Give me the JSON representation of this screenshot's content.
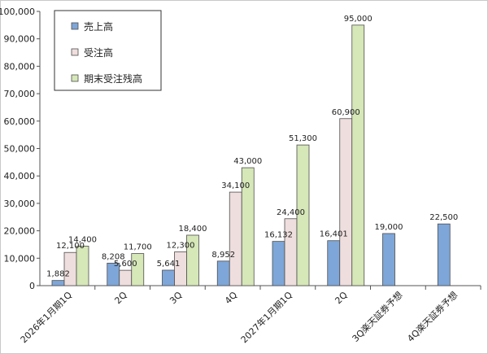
{
  "chart_data": {
    "type": "bar",
    "categories": [
      "2026年1月期1Q",
      "2Q",
      "3Q",
      "4Q",
      "2027年1月期1Q",
      "2Q",
      "3Q楽天証券予想",
      "4Q楽天証券予想"
    ],
    "series": [
      {
        "name": "売上高",
        "color": "#7ea6d8",
        "values": [
          1882,
          8208,
          5641,
          8952,
          16132,
          16401,
          19000,
          22500
        ],
        "labels": [
          "1,882",
          "8,208",
          "5,641",
          "8,952",
          "16,132",
          "16,401",
          "19,000",
          "22,500"
        ]
      },
      {
        "name": "受注高",
        "color": "#efdede",
        "values": [
          12100,
          5600,
          12300,
          34100,
          24400,
          60900,
          null,
          null
        ],
        "labels": [
          "12,100",
          "5,600",
          "12,300",
          "34,100",
          "24,400",
          "60,900",
          "",
          ""
        ]
      },
      {
        "name": "期末受注残高",
        "color": "#d6e7b8",
        "values": [
          14400,
          11700,
          18400,
          43000,
          51300,
          95000,
          null,
          null
        ],
        "labels": [
          "14,400",
          "11,700",
          "18,400",
          "43,000",
          "51,300",
          "95,000",
          "",
          ""
        ]
      }
    ],
    "ylim": [
      0,
      100000
    ],
    "yticks": [
      "0",
      "10,000",
      "20,000",
      "30,000",
      "40,000",
      "50,000",
      "60,000",
      "70,000",
      "80,000",
      "90,000",
      "100,000"
    ],
    "legend_position": "top-left",
    "grid": false
  }
}
